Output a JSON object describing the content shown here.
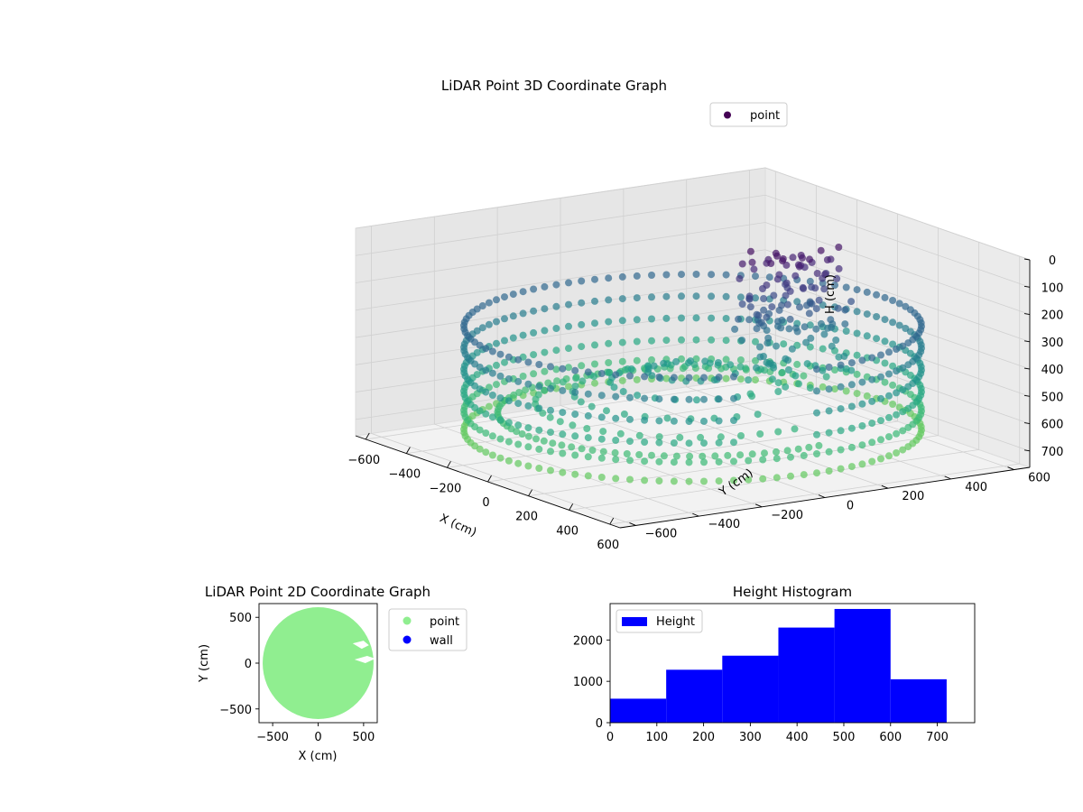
{
  "chart_data": [
    {
      "type": "scatter3d",
      "title": "LiDAR Point 3D Coordinate Graph",
      "xlabel": "X (cm)",
      "ylabel": "Y (cm)",
      "zlabel": "H (cm)",
      "xlim": [
        -650,
        650
      ],
      "ylim": [
        -650,
        650
      ],
      "zlim": [
        0,
        760
      ],
      "z_axis_inverted": true,
      "xticks": [
        -600,
        -400,
        -200,
        0,
        200,
        400,
        600
      ],
      "yticks": [
        -600,
        -400,
        -200,
        0,
        200,
        400,
        600
      ],
      "zticks": [
        0,
        100,
        200,
        300,
        400,
        500,
        600,
        700
      ],
      "grid": true,
      "colormap": "viridis",
      "legend": {
        "placement": "top-right",
        "entries": [
          {
            "label": "point",
            "color": "#440154"
          }
        ]
      },
      "structure": {
        "wall_radius": 610,
        "floor_ring_radii": [
          120,
          220,
          320,
          420,
          520
        ],
        "wall_levels": [
          300,
          380,
          460,
          540,
          610,
          680
        ],
        "angular_steps": 96,
        "gap_sector_deg": [
          340,
          400
        ],
        "inner_cluster": {
          "x_range": [
            30,
            170
          ],
          "y_range": [
            100,
            420
          ],
          "h_range": [
            40,
            560
          ]
        }
      }
    },
    {
      "type": "scatter",
      "title": "LiDAR Point 2D Coordinate Graph",
      "xlabel": "X (cm)",
      "ylabel": "Y (cm)",
      "xlim": [
        -650,
        650
      ],
      "ylim": [
        -650,
        650
      ],
      "xticks": [
        -500,
        0,
        500
      ],
      "yticks": [
        -500,
        0,
        500
      ],
      "legend": {
        "placement": "outside-right",
        "entries": [
          {
            "label": "point",
            "color": "#90ee90"
          },
          {
            "label": "wall",
            "color": "#0000ff"
          }
        ]
      },
      "series": [
        {
          "name": "point",
          "color": "#90ee90",
          "shape": "disk",
          "radius": 610
        },
        {
          "name": "wall",
          "color": "#0000ff",
          "values": []
        }
      ]
    },
    {
      "type": "histogram",
      "title": "Height Histogram",
      "xlim": [
        0,
        780
      ],
      "ylim": [
        0,
        2880
      ],
      "xticks": [
        0,
        100,
        200,
        300,
        400,
        500,
        600,
        700
      ],
      "yticks": [
        0,
        1000,
        2000
      ],
      "bin_edges": [
        0,
        120,
        240,
        360,
        480,
        600,
        720
      ],
      "counts": [
        580,
        1280,
        1620,
        2300,
        2750,
        1050
      ],
      "color": "#0000ff",
      "legend": {
        "placement": "top-left",
        "entries": [
          {
            "label": "Height",
            "color": "#0000ff"
          }
        ]
      }
    }
  ]
}
